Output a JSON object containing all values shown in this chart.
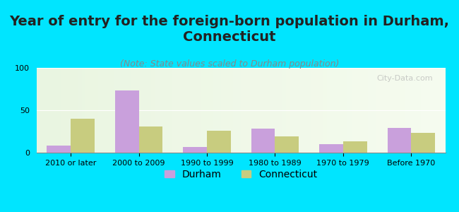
{
  "title": "Year of entry for the foreign-born population in Durham,\nConnecticut",
  "subtitle": "(Note: State values scaled to Durham population)",
  "categories": [
    "2010 or later",
    "2000 to 2009",
    "1990 to 1999",
    "1980 to 1989",
    "1970 to 1979",
    "Before 1970"
  ],
  "durham_values": [
    8,
    73,
    7,
    28,
    10,
    29
  ],
  "connecticut_values": [
    40,
    31,
    26,
    19,
    13,
    23
  ],
  "durham_color": "#c9a0dc",
  "connecticut_color": "#c8cc7f",
  "background_color": "#00e5ff",
  "plot_bg_start": "#f0f8e8",
  "plot_bg_end": "#ffffff",
  "ylim": [
    0,
    100
  ],
  "yticks": [
    0,
    50,
    100
  ],
  "bar_width": 0.35,
  "watermark": "City-Data.com",
  "watermark_color": "#aaaaaa",
  "title_fontsize": 14,
  "subtitle_fontsize": 9,
  "tick_fontsize": 8,
  "legend_fontsize": 10
}
